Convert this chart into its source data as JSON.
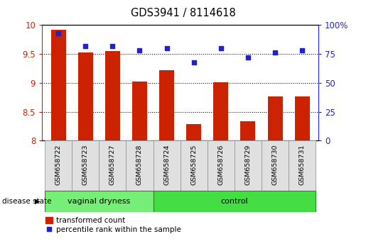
{
  "title": "GDS3941 / 8114618",
  "samples": [
    "GSM658722",
    "GSM658723",
    "GSM658727",
    "GSM658728",
    "GSM658724",
    "GSM658725",
    "GSM658726",
    "GSM658729",
    "GSM658730",
    "GSM658731"
  ],
  "red_values": [
    9.92,
    9.52,
    9.55,
    9.02,
    9.22,
    8.28,
    9.01,
    8.33,
    8.77,
    8.77
  ],
  "blue_values": [
    93,
    82,
    82,
    78,
    80,
    68,
    80,
    72,
    76,
    78
  ],
  "ylim_left": [
    8.0,
    10.0
  ],
  "ylim_right": [
    0,
    100
  ],
  "yticks_left": [
    8.0,
    8.5,
    9.0,
    9.5,
    10.0
  ],
  "yticks_right": [
    0,
    25,
    50,
    75,
    100
  ],
  "ytick_labels_left": [
    "8",
    "8.5",
    "9",
    "9.5",
    "10"
  ],
  "ytick_labels_right": [
    "0",
    "25",
    "50",
    "75",
    "100%"
  ],
  "bar_color": "#cc2200",
  "dot_color": "#2222cc",
  "bg_color": "#ffffff",
  "legend_red": "transformed count",
  "legend_blue": "percentile rank within the sample",
  "group_label": "disease state",
  "vd_color": "#77ee77",
  "ctrl_color": "#44dd44",
  "cell_color": "#e0e0e0",
  "cell_edge": "#999999",
  "group_edge": "#228822",
  "vaginal_count": 4,
  "control_count": 6,
  "grid_vals": [
    8.5,
    9.0,
    9.5
  ]
}
